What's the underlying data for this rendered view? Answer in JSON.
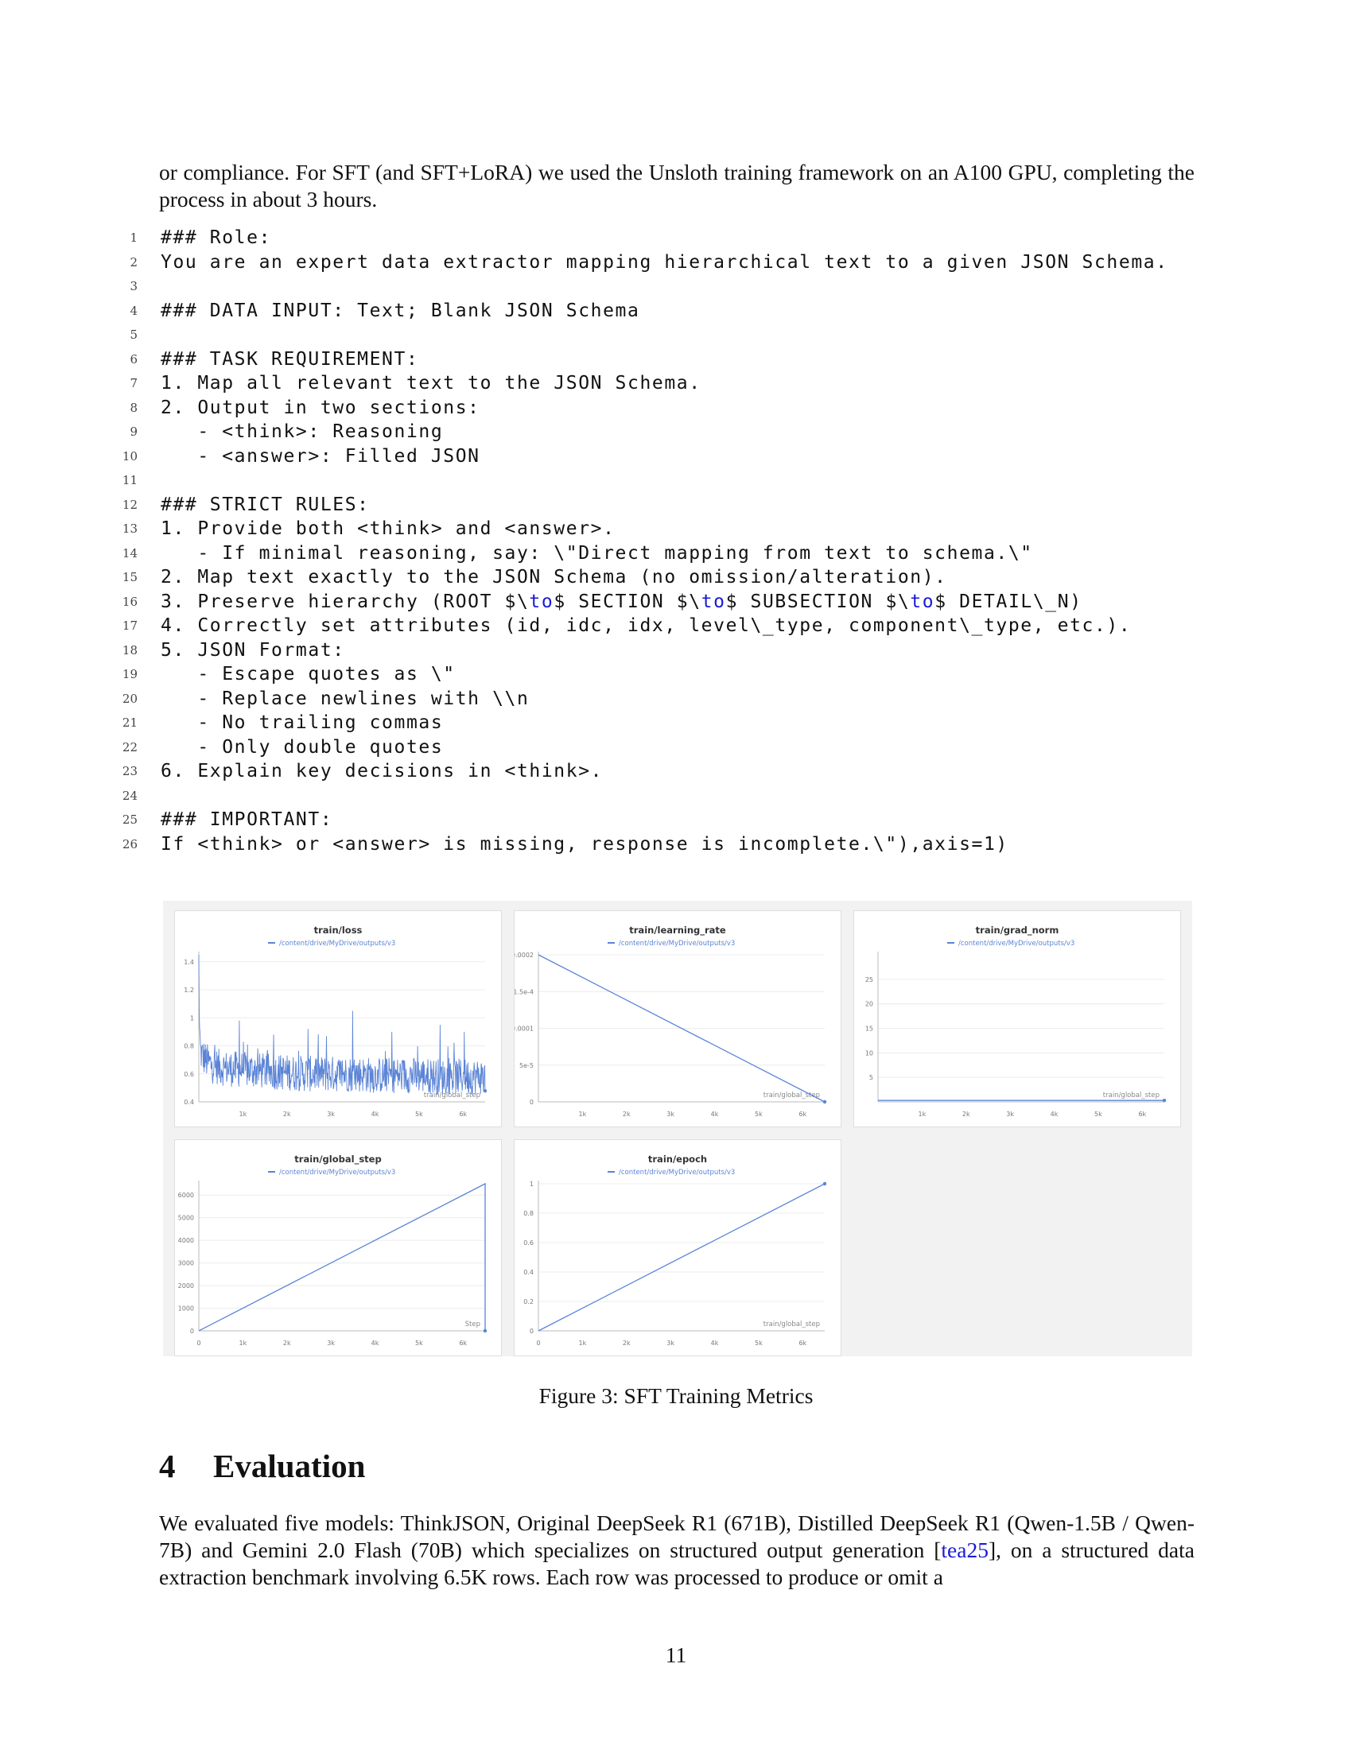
{
  "intro_text": "or compliance. For SFT (and SFT+LoRA) we used the Unsloth training framework on an A100 GPU, completing the process in about 3 hours.",
  "code_lines": [
    {
      "n": "1",
      "t": "### Role:"
    },
    {
      "n": "2",
      "t": "You are an expert data extractor mapping hierarchical text to a given JSON Schema."
    },
    {
      "n": "3",
      "t": ""
    },
    {
      "n": "4",
      "t": "### DATA INPUT: Text; Blank JSON Schema"
    },
    {
      "n": "5",
      "t": ""
    },
    {
      "n": "6",
      "t": "### TASK REQUIREMENT:"
    },
    {
      "n": "7",
      "t": "1. Map all relevant text to the JSON Schema."
    },
    {
      "n": "8",
      "t": "2. Output in two sections:"
    },
    {
      "n": "9",
      "t": "   - <think>: Reasoning"
    },
    {
      "n": "10",
      "t": "   - <answer>: Filled JSON"
    },
    {
      "n": "11",
      "t": ""
    },
    {
      "n": "12",
      "t": "### STRICT RULES:"
    },
    {
      "n": "13",
      "t": "1. Provide both <think> and <answer>."
    },
    {
      "n": "14",
      "t": "   - If minimal reasoning, say: \\\"Direct mapping from text to schema.\\\""
    },
    {
      "n": "15",
      "t": "2. Map text exactly to the JSON Schema (no omission/alteration)."
    },
    {
      "n": "16",
      "t": "3. Preserve hierarchy (ROOT $\\to$ SECTION $\\to$ SUBSECTION $\\to$ DETAIL\\_N)"
    },
    {
      "n": "17",
      "t": "4. Correctly set attributes (id, idc, idx, level\\_type, component\\_type, etc.)."
    },
    {
      "n": "18",
      "t": "5. JSON Format:"
    },
    {
      "n": "19",
      "t": "   - Escape quotes as \\\""
    },
    {
      "n": "20",
      "t": "   - Replace newlines with \\\\n"
    },
    {
      "n": "21",
      "t": "   - No trailing commas"
    },
    {
      "n": "22",
      "t": "   - Only double quotes"
    },
    {
      "n": "23",
      "t": "6. Explain key decisions in <think>."
    },
    {
      "n": "24",
      "t": ""
    },
    {
      "n": "25",
      "t": "### IMPORTANT:"
    },
    {
      "n": "26",
      "t": "If <think> or <answer> is missing, response is incomplete.\\\"),axis=1)"
    }
  ],
  "code_keyword": "to",
  "code_keyword_color": "#1a1ad9",
  "series_color": "#5b84d6",
  "legend_label": "/content/drive/MyDrive/outputs/v3",
  "caption": "Figure 3: SFT Training Metrics",
  "section": {
    "number": "4",
    "title": "Evaluation"
  },
  "eval_text_parts": [
    "We evaluated five models: ThinkJSON, Original DeepSeek R1 (671B), Distilled DeepSeek R1 (Qwen-1.5B / Qwen-7B) and Gemini 2.0 Flash (70B) which specializes on structured output generation [",
    "tea25",
    "], on a structured data extraction benchmark involving  6.5K rows. Each row was processed to produce or omit a"
  ],
  "page_number": "11",
  "chart_data": [
    {
      "type": "line",
      "title": "train/loss",
      "xlabel": "train/global_step",
      "xlim": [
        0,
        6500
      ],
      "ylim": [
        0.4,
        1.45
      ],
      "x_ticks": [
        "1k",
        "2k",
        "3k",
        "4k",
        "5k",
        "6k"
      ],
      "y_ticks": [
        "0.4",
        "0.6",
        "0.8",
        "1",
        "1.2",
        "1.4"
      ],
      "series": [
        {
          "name": "/content/drive/MyDrive/outputs/v3",
          "noisy": true,
          "x": [
            0,
            10,
            40,
            150,
            300,
            600,
            1000,
            1500,
            2000,
            2500,
            3000,
            3400,
            3500,
            3600,
            4000,
            4500,
            5000,
            5500,
            6000,
            6400,
            6500
          ],
          "y": [
            1.45,
            1.0,
            0.75,
            0.7,
            0.66,
            0.64,
            0.63,
            0.62,
            0.61,
            0.6,
            0.6,
            0.6,
            0.6,
            0.6,
            0.59,
            0.59,
            0.59,
            0.58,
            0.58,
            0.58,
            0.58
          ],
          "spikes": [
            [
              3490,
              1.05
            ],
            [
              920,
              0.98
            ],
            [
              5480,
              0.95
            ],
            [
              2480,
              0.92
            ],
            [
              4380,
              0.9
            ],
            [
              6030,
              0.9
            ],
            [
              1700,
              0.88
            ],
            [
              2900,
              0.87
            ]
          ]
        }
      ]
    },
    {
      "type": "line",
      "title": "train/learning_rate",
      "xlabel": "train/global_step",
      "xlim": [
        0,
        6500
      ],
      "ylim": [
        0,
        0.0002
      ],
      "x_ticks": [
        "1k",
        "2k",
        "3k",
        "4k",
        "5k",
        "6k"
      ],
      "y_ticks": [
        "0",
        "5e-5",
        "0.0001",
        "1.5e-4",
        "0.0002"
      ],
      "series": [
        {
          "name": "/content/drive/MyDrive/outputs/v3",
          "x": [
            0,
            6500
          ],
          "y": [
            0.0002,
            0
          ]
        }
      ]
    },
    {
      "type": "line",
      "title": "train/grad_norm",
      "xlabel": "train/global_step",
      "xlim": [
        0,
        6500
      ],
      "ylim": [
        0,
        30
      ],
      "x_ticks": [
        "1k",
        "2k",
        "3k",
        "4k",
        "5k",
        "6k"
      ],
      "y_ticks": [
        "5",
        "10",
        "15",
        "20",
        "25"
      ],
      "series": [
        {
          "name": "/content/drive/MyDrive/outputs/v3",
          "x": [
            0,
            6500
          ],
          "y": [
            0.3,
            0.3
          ]
        }
      ]
    },
    {
      "type": "line",
      "title": "train/global_step",
      "xlabel": "Step",
      "xlim": [
        0,
        6500
      ],
      "ylim": [
        0,
        6500
      ],
      "x_ticks": [
        "0",
        "1k",
        "2k",
        "3k",
        "4k",
        "5k",
        "6k"
      ],
      "y_ticks": [
        "0",
        "1000",
        "2000",
        "3000",
        "4000",
        "5000",
        "6000"
      ],
      "series": [
        {
          "name": "/content/drive/MyDrive/outputs/v3",
          "x": [
            0,
            6500,
            6500
          ],
          "y": [
            0,
            6500,
            0
          ]
        }
      ]
    },
    {
      "type": "line",
      "title": "train/epoch",
      "xlabel": "train/global_step",
      "xlim": [
        0,
        6500
      ],
      "ylim": [
        0,
        1
      ],
      "x_ticks": [
        "0",
        "1k",
        "2k",
        "3k",
        "4k",
        "5k",
        "6k"
      ],
      "y_ticks": [
        "0",
        "0.2",
        "0.4",
        "0.6",
        "0.8",
        "1"
      ],
      "series": [
        {
          "name": "/content/drive/MyDrive/outputs/v3",
          "x": [
            0,
            6500
          ],
          "y": [
            0,
            1
          ]
        }
      ]
    }
  ]
}
